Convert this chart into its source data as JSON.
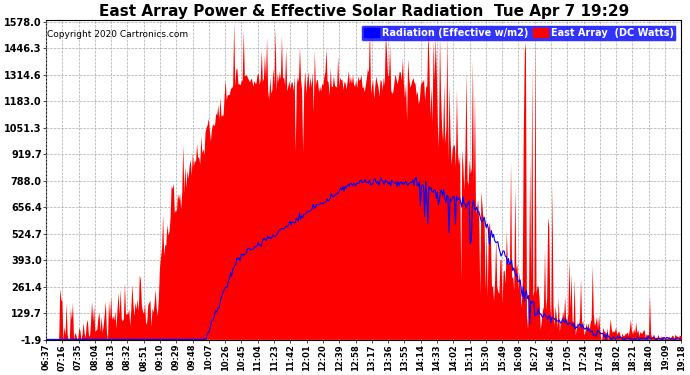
{
  "title": "East Array Power & Effective Solar Radiation  Tue Apr 7 19:29",
  "copyright": "Copyright 2020 Cartronics.com",
  "legend_labels": [
    "Radiation (Effective w/m2)",
    "East Array  (DC Watts)"
  ],
  "ymin": -1.9,
  "ymax": 1578.0,
  "yticks": [
    1578.0,
    1446.3,
    1314.6,
    1183.0,
    1051.3,
    919.7,
    788.0,
    656.4,
    524.7,
    393.0,
    261.4,
    129.7,
    -1.9
  ],
  "background_color": "#ffffff",
  "plot_bg_color": "#ffffff",
  "grid_color": "#aaaaaa",
  "title_fontsize": 11,
  "tick_fontsize": 7,
  "x_labels": [
    "06:37",
    "07:16",
    "07:35",
    "08:04",
    "08:13",
    "08:32",
    "08:51",
    "09:10",
    "09:29",
    "09:48",
    "10:07",
    "10:26",
    "10:45",
    "11:04",
    "11:23",
    "11:42",
    "12:01",
    "12:20",
    "12:39",
    "12:58",
    "13:17",
    "13:36",
    "13:55",
    "14:14",
    "14:33",
    "14:02",
    "15:11",
    "15:30",
    "15:49",
    "16:08",
    "16:27",
    "16:46",
    "17:05",
    "17:24",
    "17:43",
    "18:02",
    "18:21",
    "18:40",
    "19:09",
    "19:18"
  ]
}
